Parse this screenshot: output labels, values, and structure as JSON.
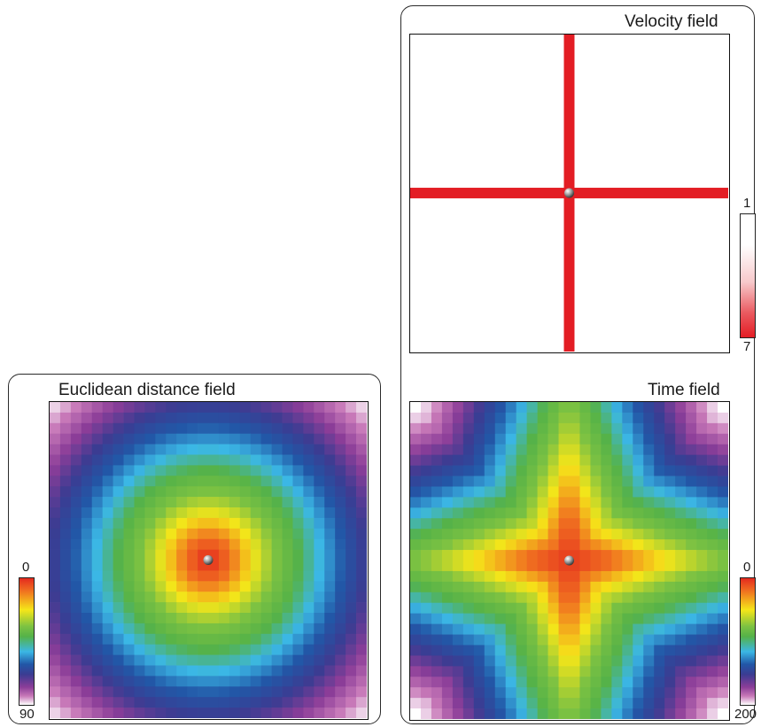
{
  "panels": {
    "euclidean": {
      "title": "Euclidean distance field",
      "colorbar": {
        "min_label": "0",
        "max_label": "90"
      },
      "grid_size": 30,
      "source_marker": "sphere-marker"
    },
    "velocity": {
      "title": "Velocity field",
      "colorbar": {
        "min_label": "1",
        "max_label": "7"
      },
      "background": "#ffffff",
      "highlight_color": "#e31d24",
      "source_marker": "sphere-marker"
    },
    "time": {
      "title": "Time field",
      "colorbar": {
        "min_label": "0",
        "max_label": "200"
      },
      "grid_size": 30,
      "source_marker": "sphere-marker"
    }
  },
  "colormap": {
    "rainbow_stops": [
      "#e42a1f",
      "#f07020",
      "#f5e619",
      "#7dc242",
      "#55b248",
      "#3bb7e5",
      "#2257a7",
      "#3b3c92",
      "#8b3d98",
      "#c778b8",
      "#ffffff"
    ],
    "velocity_stops": [
      "#ffffff",
      "#f7c9cb",
      "#e31d24"
    ]
  }
}
